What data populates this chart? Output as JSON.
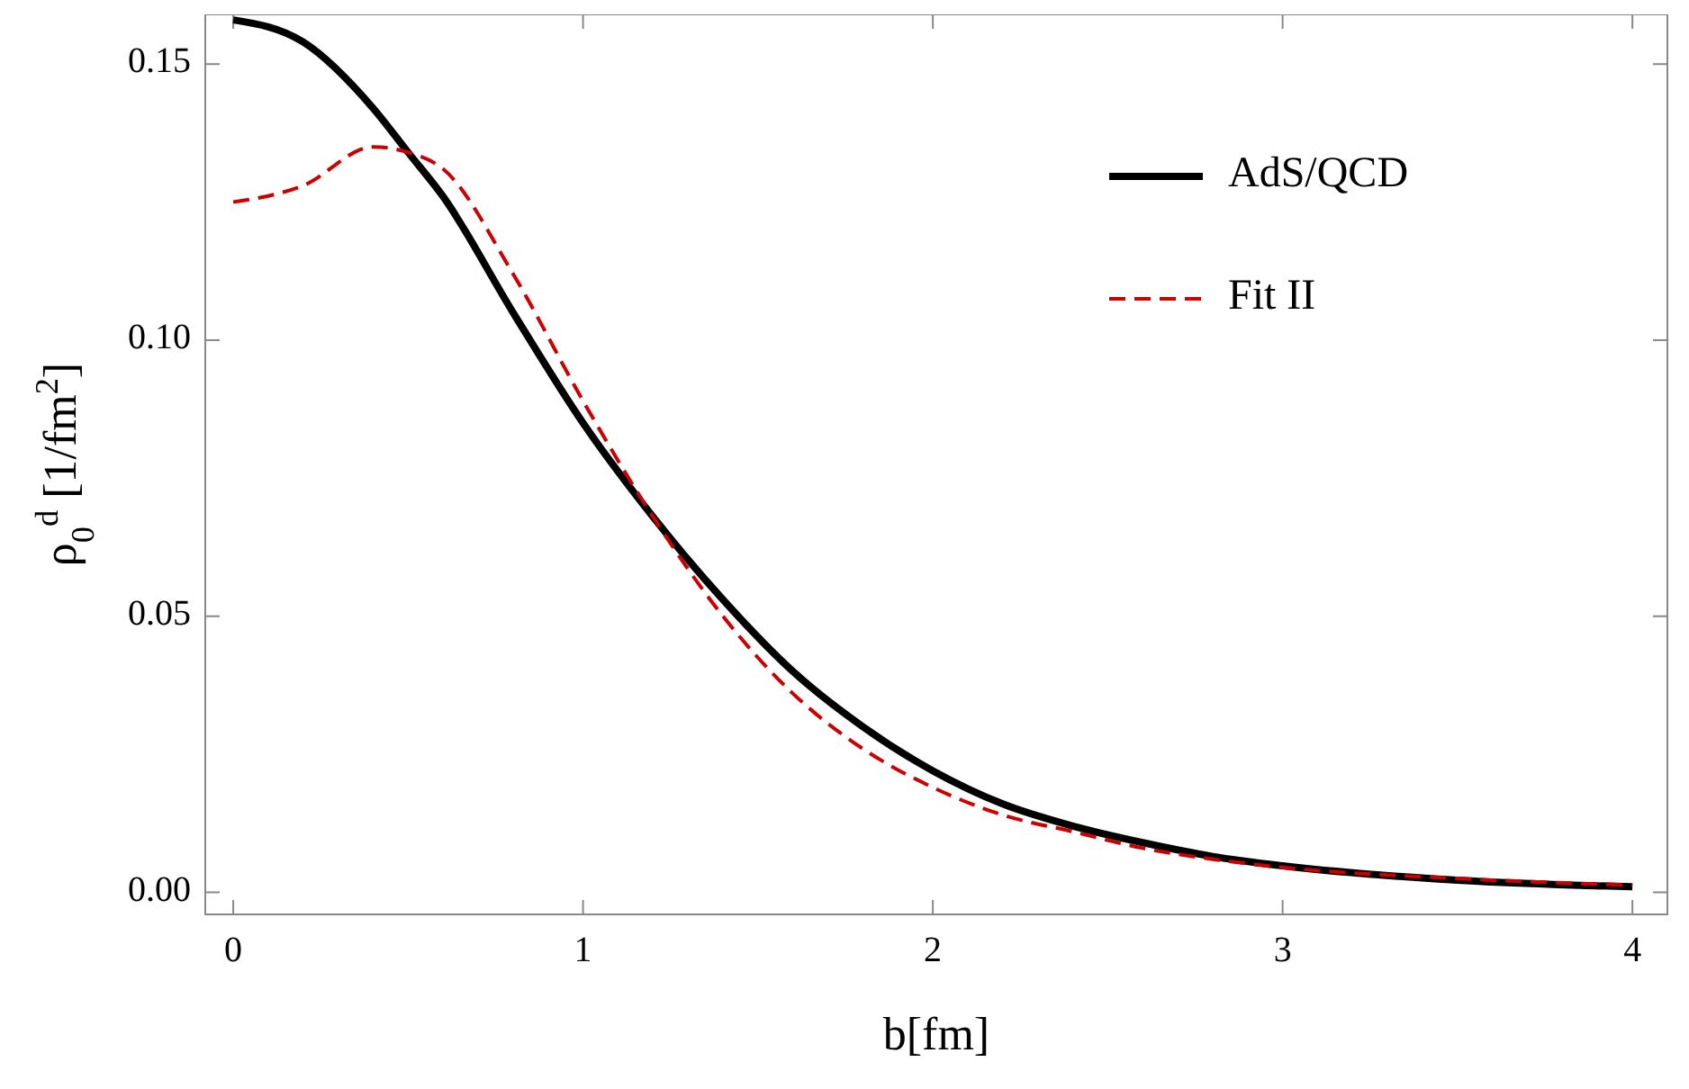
{
  "chart_data": {
    "type": "line",
    "xlabel": "b[fm]",
    "ylabel": "ρ$_{0}$$^{d}$ [1/fm$^{2}$]",
    "xlim": [
      -0.08,
      4.1
    ],
    "ylim": [
      -0.004,
      0.159
    ],
    "xticks": [
      0,
      1,
      2,
      3,
      4
    ],
    "yticks": [
      {
        "value": 0,
        "label": "0.00"
      },
      {
        "value": 0.05,
        "label": "0.05"
      },
      {
        "value": 0.1,
        "label": "0.10"
      },
      {
        "value": 0.15,
        "label": "0.15"
      }
    ],
    "x": [
      0,
      0.2,
      0.4,
      0.5,
      0.6,
      0.8,
      1.0,
      1.2,
      1.4,
      1.6,
      1.8,
      2.0,
      2.2,
      2.4,
      2.6,
      2.8,
      3.0,
      3.5,
      4.0
    ],
    "series": [
      {
        "name": "AdS/QCD",
        "color": "#000000",
        "line_style": "solid",
        "values": [
          0.158,
          0.154,
          0.142,
          0.134,
          0.126,
          0.105,
          0.085,
          0.068,
          0.053,
          0.04,
          0.03,
          0.022,
          0.016,
          0.012,
          0.009,
          0.0065,
          0.0048,
          0.0022,
          0.001
        ]
      },
      {
        "name": "Fit II",
        "color": "#cc0000",
        "line_style": "dashed",
        "values": [
          0.125,
          0.128,
          0.135,
          0.134,
          0.131,
          0.112,
          0.089,
          0.068,
          0.05,
          0.036,
          0.026,
          0.019,
          0.014,
          0.011,
          0.008,
          0.006,
          0.0045,
          0.0025,
          0.0013
        ]
      }
    ],
    "legend": "top right",
    "grid": false,
    "marker": "none"
  }
}
